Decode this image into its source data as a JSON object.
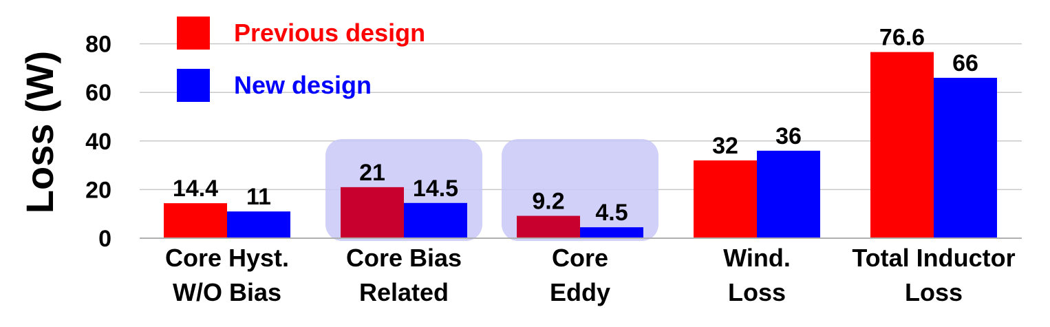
{
  "chart_data": {
    "type": "bar",
    "title": "",
    "xlabel": "",
    "ylabel": "Loss (W)",
    "ylim": [
      0,
      88
    ],
    "yticks": [
      "0",
      "20",
      "40",
      "60",
      "80"
    ],
    "grid": true,
    "legend_position": "top-left",
    "categories": [
      [
        "Core Hyst.",
        "W/O Bias"
      ],
      [
        "Core Bias",
        "Related"
      ],
      [
        "Core",
        "Eddy"
      ],
      [
        "Wind.",
        "Loss"
      ],
      [
        "Total Inductor",
        "Loss"
      ]
    ],
    "highlighted_categories": [
      1,
      2
    ],
    "series": [
      {
        "name": "Previous design",
        "color": "#ff0000",
        "highlight_color": "#c8002d",
        "values": [
          14.4,
          21,
          9.2,
          32,
          76.6
        ],
        "labels": [
          "14.4",
          "21",
          "9.2",
          "32",
          "76.6"
        ]
      },
      {
        "name": "New design",
        "color": "#0000ff",
        "values": [
          11,
          14.5,
          4.5,
          36,
          66
        ],
        "labels": [
          "11",
          "14.5",
          "4.5",
          "36",
          "66"
        ]
      }
    ]
  }
}
